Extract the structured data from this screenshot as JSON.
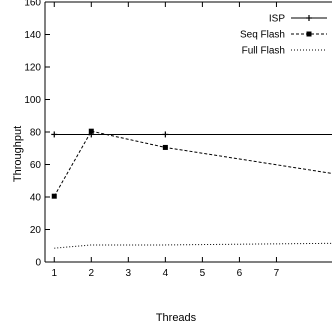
{
  "chart_data": {
    "type": "line",
    "title": "",
    "xlabel": "Threads",
    "ylabel": "Throughput",
    "xlim": [
      0.75,
      8.5
    ],
    "ylim": [
      0,
      160
    ],
    "x_ticks": [
      1,
      2,
      3,
      4,
      5,
      6,
      7
    ],
    "y_ticks": [
      0,
      20,
      40,
      60,
      80,
      100,
      120,
      140,
      160
    ],
    "grid": false,
    "legend_position": "top-right",
    "series": [
      {
        "name": "ISP",
        "line_style": "solid",
        "marker": "cross",
        "color": "#000000",
        "x": [
          1,
          2,
          4,
          8.5
        ],
        "y": [
          78.5,
          78.5,
          78.5,
          78.5
        ]
      },
      {
        "name": "Seq Flash",
        "line_style": "dashed",
        "marker": "square",
        "color": "#000000",
        "x": [
          1,
          2,
          4,
          8.5
        ],
        "y": [
          40.5,
          80.5,
          70.5,
          54.5
        ]
      },
      {
        "name": "Full Flash",
        "line_style": "dotted",
        "marker": "none",
        "color": "#000000",
        "x": [
          1,
          2,
          4,
          8.5
        ],
        "y": [
          8.5,
          10.5,
          10.5,
          11.5
        ]
      }
    ]
  }
}
